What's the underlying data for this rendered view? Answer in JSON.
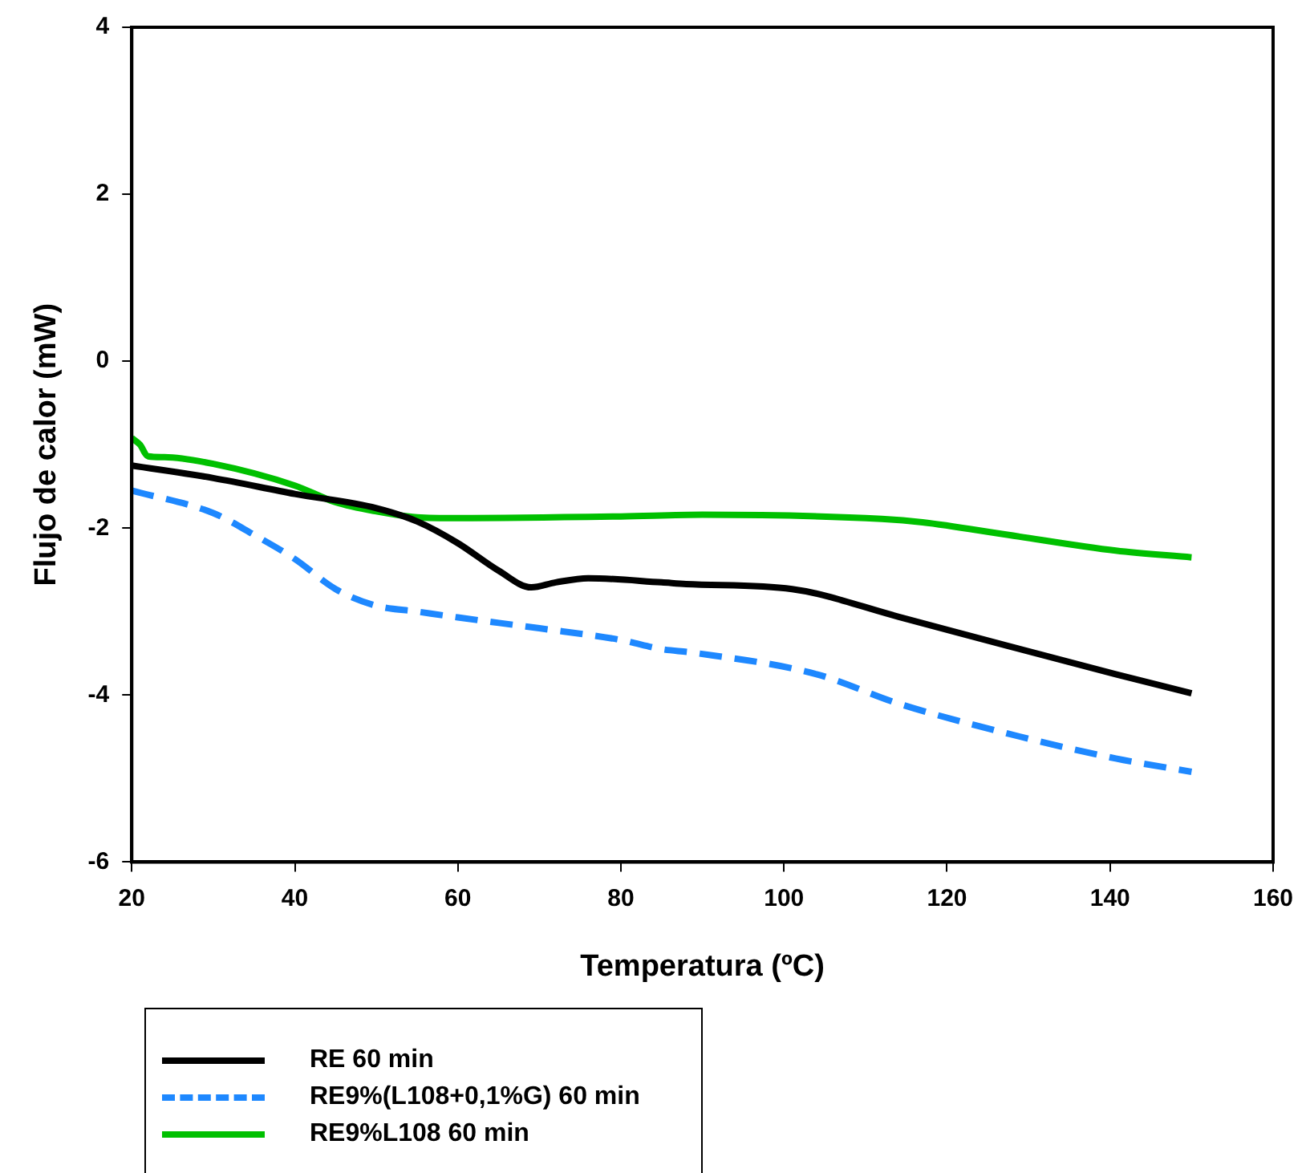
{
  "chart_data": {
    "type": "line",
    "xlabel": "Temperatura (ºC)",
    "ylabel": "Flujo de calor (mW)",
    "xlim": [
      20,
      160
    ],
    "xticks": [
      20,
      40,
      60,
      80,
      100,
      120,
      140,
      160
    ],
    "ylim": [
      -6,
      4
    ],
    "yticks": [
      -6,
      -4,
      -2,
      0,
      2,
      4
    ],
    "grid": false,
    "legend": "bottom",
    "marker": "none",
    "series": [
      {
        "name": "RE 60 min",
        "color": "#000000",
        "line_style": "solid",
        "x": [
          20,
          30,
          40,
          50,
          55,
          60,
          65,
          69,
          72,
          76,
          85,
          88,
          101,
          114,
          127.4,
          140.7,
          150
        ],
        "values": [
          -1.25,
          -1.4,
          -1.59,
          -1.76,
          -1.92,
          -2.18,
          -2.51,
          -2.71,
          -2.65,
          -2.6,
          -2.65,
          -2.67,
          -2.73,
          -3.06,
          -3.41,
          -3.75,
          -3.98
        ]
      },
      {
        "name": "RE9%(L108+0,1%G) 60 min",
        "color": "#1e88ff",
        "line_style": "dashed",
        "x": [
          20,
          30,
          35,
          40,
          45,
          50,
          55,
          60,
          70,
          80,
          85,
          88.7,
          104,
          114,
          127.4,
          140.7,
          150
        ],
        "values": [
          -1.55,
          -1.82,
          -2.08,
          -2.37,
          -2.73,
          -2.93,
          -3.0,
          -3.07,
          -3.2,
          -3.34,
          -3.45,
          -3.49,
          -3.75,
          -4.1,
          -4.46,
          -4.76,
          -4.92
        ]
      },
      {
        "name": "RE9%L108 60 min",
        "color": "#00c000",
        "line_style": "solid",
        "x": [
          20,
          21,
          22,
          24,
          30,
          40,
          45,
          50,
          55,
          60,
          80,
          90,
          112,
          117,
          127.4,
          140.7,
          150
        ],
        "values": [
          -0.92,
          -1.0,
          -1.14,
          -1.15,
          -1.23,
          -1.49,
          -1.69,
          -1.8,
          -1.87,
          -1.88,
          -1.86,
          -1.84,
          -1.89,
          -1.93,
          -2.08,
          -2.27,
          -2.35
        ]
      }
    ]
  }
}
